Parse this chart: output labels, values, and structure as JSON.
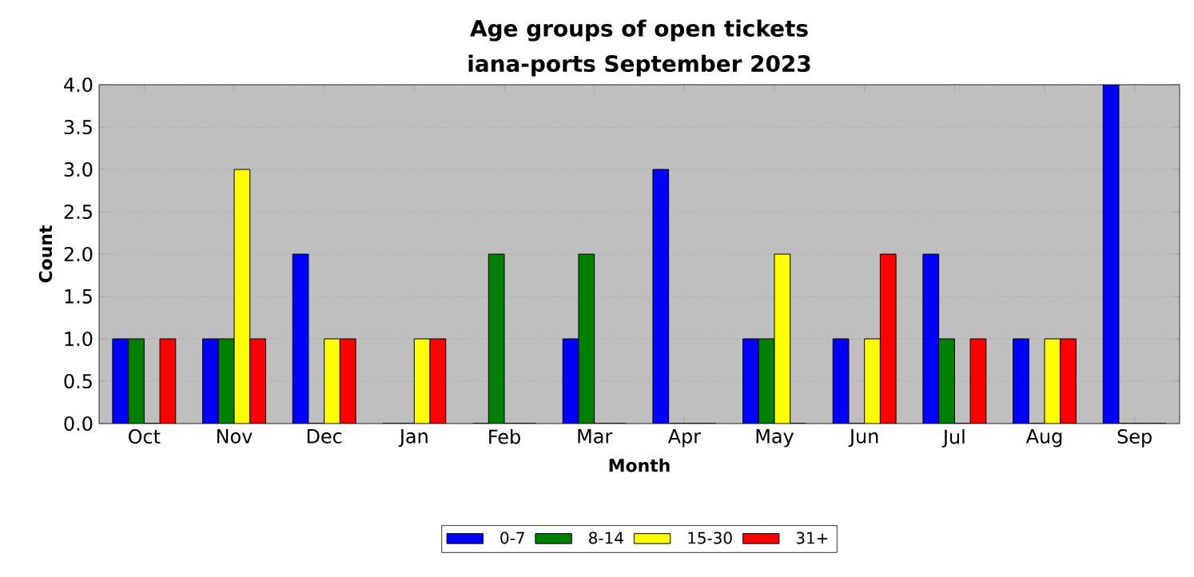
{
  "chart_data": {
    "type": "bar",
    "title": "Age groups of open tickets",
    "subtitle": "iana-ports September 2023",
    "xlabel": "Month",
    "ylabel": "Count",
    "categories": [
      "Oct",
      "Nov",
      "Dec",
      "Jan",
      "Feb",
      "Mar",
      "Apr",
      "May",
      "Jun",
      "Jul",
      "Aug",
      "Sep"
    ],
    "series": [
      {
        "name": "0-7",
        "color": "#0000ff",
        "values": [
          1,
          1,
          2,
          0,
          0,
          1,
          3,
          1,
          1,
          2,
          1,
          4
        ]
      },
      {
        "name": "8-14",
        "color": "#008000",
        "values": [
          1,
          1,
          0,
          0,
          2,
          2,
          0,
          1,
          0,
          1,
          0,
          0
        ]
      },
      {
        "name": "15-30",
        "color": "#ffff00",
        "values": [
          0,
          3,
          1,
          1,
          0,
          0,
          0,
          2,
          1,
          0,
          1,
          0
        ]
      },
      {
        "name": "31+",
        "color": "#ff0000",
        "values": [
          1,
          1,
          1,
          1,
          0,
          0,
          0,
          0,
          2,
          1,
          1,
          0
        ]
      }
    ],
    "ylim": [
      0,
      4
    ],
    "yticks": [
      {
        "value": 0,
        "label": "0.0"
      },
      {
        "value": 0.5,
        "label": "0.5"
      },
      {
        "value": 1,
        "label": "1.0"
      },
      {
        "value": 1.5,
        "label": "1.5"
      },
      {
        "value": 2,
        "label": "2.0"
      },
      {
        "value": 2.5,
        "label": "2.5"
      },
      {
        "value": 3,
        "label": "3.0"
      },
      {
        "value": 3.5,
        "label": "3.5"
      },
      {
        "value": 4,
        "label": "4.0"
      }
    ],
    "grid": "y",
    "legend": "bottom"
  }
}
